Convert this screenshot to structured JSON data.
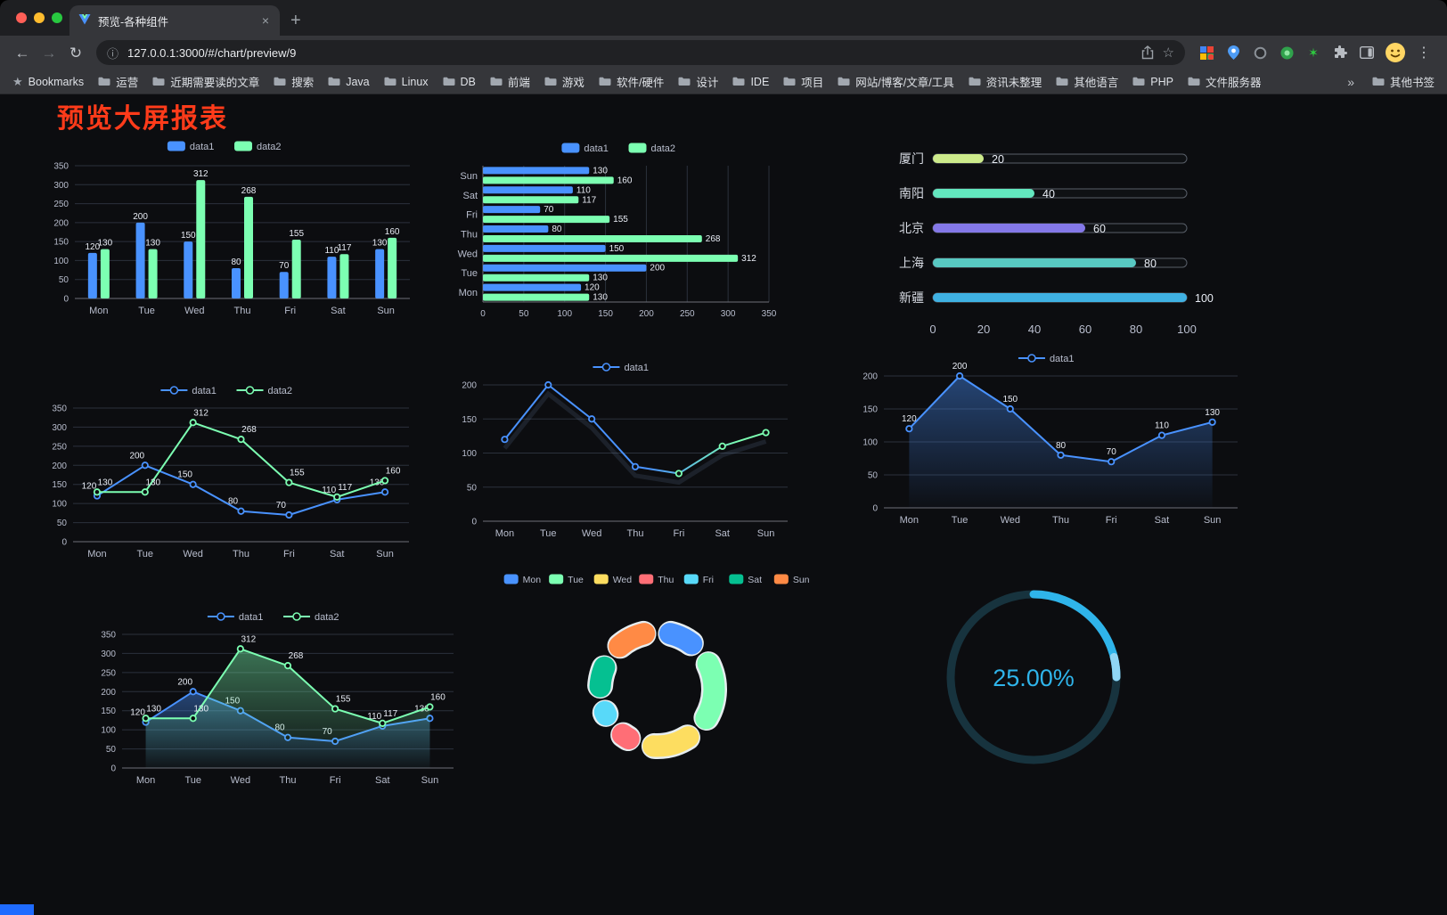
{
  "browser": {
    "tab_title": "预览-各种组件",
    "url": "127.0.0.1:3000/#/chart/preview/9",
    "icons": {
      "back": "←",
      "forward": "→",
      "reload": "↻",
      "info": "ⓘ",
      "star": "☆",
      "bookmarks_star": "★",
      "new_tab": "+",
      "close_tab": "×",
      "menu": "⋮",
      "overflow": "»",
      "ext_star": "✶"
    },
    "bookmarks_bar": {
      "bookmarks_label": "Bookmarks",
      "items": [
        "运营",
        "近期需要读的文章",
        "搜索",
        "Java",
        "Linux",
        "DB",
        "前端",
        "游戏",
        "软件/硬件",
        "设计",
        "IDE",
        "项目",
        "网站/博客/文章/工具",
        "资讯未整理",
        "其他语言",
        "PHP",
        "文件服务器"
      ],
      "other_bookmarks": "其他书签"
    }
  },
  "page": {
    "title": "预览大屏报表",
    "title_color": "#ff3b1a",
    "background": "#0c0d10"
  },
  "chart_data": [
    {
      "type": "bar",
      "name": "grouped-vertical-bar",
      "categories": [
        "Mon",
        "Tue",
        "Wed",
        "Thu",
        "Fri",
        "Sat",
        "Sun"
      ],
      "series": [
        {
          "name": "data1",
          "color": "#4992ff",
          "values": [
            120,
            200,
            150,
            80,
            70,
            110,
            130
          ]
        },
        {
          "name": "data2",
          "color": "#7cffb2",
          "values": [
            130,
            130,
            312,
            268,
            155,
            117,
            160
          ]
        }
      ],
      "ylim": [
        0,
        350
      ],
      "ytick": 50,
      "legend_position": "top",
      "grid": true,
      "value_labels": true
    },
    {
      "type": "hbar",
      "name": "grouped-horizontal-bar",
      "categories": [
        "Mon",
        "Tue",
        "Wed",
        "Thu",
        "Fri",
        "Sat",
        "Sun"
      ],
      "series": [
        {
          "name": "data1",
          "color": "#4992ff",
          "values": [
            120,
            200,
            150,
            80,
            70,
            110,
            130
          ]
        },
        {
          "name": "data2",
          "color": "#7cffb2",
          "values": [
            130,
            130,
            312,
            268,
            155,
            117,
            160
          ]
        }
      ],
      "xlim": [
        0,
        350
      ],
      "xtick": 50,
      "legend_position": "top",
      "grid": true,
      "value_labels": true
    },
    {
      "type": "progress",
      "name": "city-progress-bars",
      "max": 100,
      "axis_ticks": [
        0,
        20,
        40,
        60,
        80,
        100
      ],
      "items": [
        {
          "label": "厦门",
          "value": 20,
          "color": "#cdeb8b"
        },
        {
          "label": "南阳",
          "value": 40,
          "color": "#63e6be"
        },
        {
          "label": "北京",
          "value": 60,
          "color": "#8478e8"
        },
        {
          "label": "上海",
          "value": 80,
          "color": "#58c8c2"
        },
        {
          "label": "新疆",
          "value": 100,
          "color": "#3fb1e3"
        }
      ]
    },
    {
      "type": "line",
      "name": "two-series-line",
      "categories": [
        "Mon",
        "Tue",
        "Wed",
        "Thu",
        "Fri",
        "Sat",
        "Sun"
      ],
      "series": [
        {
          "name": "data1",
          "color": "#4992ff",
          "values": [
            120,
            200,
            150,
            80,
            70,
            110,
            130
          ]
        },
        {
          "name": "data2",
          "color": "#7cffb2",
          "values": [
            130,
            130,
            312,
            268,
            155,
            117,
            160
          ]
        }
      ],
      "ylim": [
        0,
        350
      ],
      "ytick": 50,
      "legend_position": "top",
      "value_labels": true
    },
    {
      "type": "line",
      "name": "gradient-line",
      "categories": [
        "Mon",
        "Tue",
        "Wed",
        "Thu",
        "Fri",
        "Sat",
        "Sun"
      ],
      "series": [
        {
          "name": "data1",
          "color": "#4992ff",
          "gradient_to": "#7cffb2",
          "values": [
            120,
            200,
            150,
            80,
            70,
            110,
            130
          ]
        }
      ],
      "ylim": [
        0,
        200
      ],
      "ytick": 50,
      "legend_position": "top",
      "value_labels": false
    },
    {
      "type": "line",
      "name": "area-line",
      "categories": [
        "Mon",
        "Tue",
        "Wed",
        "Thu",
        "Fri",
        "Sat",
        "Sun"
      ],
      "series": [
        {
          "name": "data1",
          "color": "#4992ff",
          "area": true,
          "values": [
            120,
            200,
            150,
            80,
            70,
            110,
            130
          ]
        }
      ],
      "ylim": [
        0,
        200
      ],
      "ytick": 50,
      "legend_position": "top",
      "value_labels": true
    },
    {
      "type": "line",
      "name": "two-series-area-line",
      "categories": [
        "Mon",
        "Tue",
        "Wed",
        "Thu",
        "Fri",
        "Sat",
        "Sun"
      ],
      "series": [
        {
          "name": "data1",
          "color": "#4992ff",
          "area": true,
          "values": [
            120,
            200,
            150,
            80,
            70,
            110,
            130
          ]
        },
        {
          "name": "data2",
          "color": "#7cffb2",
          "area": true,
          "values": [
            130,
            130,
            312,
            268,
            155,
            117,
            160
          ]
        }
      ],
      "ylim": [
        0,
        350
      ],
      "ytick": 50,
      "legend_position": "top",
      "value_labels": true
    },
    {
      "type": "donut",
      "name": "weekday-donut",
      "legend": [
        "Mon",
        "Tue",
        "Wed",
        "Thu",
        "Fri",
        "Sat",
        "Sun"
      ],
      "colors": [
        "#4992ff",
        "#7cffb2",
        "#fddd60",
        "#ff6e76",
        "#58d9f9",
        "#05c091",
        "#ff8a45"
      ],
      "values": [
        120,
        200,
        150,
        80,
        70,
        110,
        130
      ],
      "legend_position": "top"
    },
    {
      "type": "gauge",
      "name": "percent-gauge",
      "value": 25,
      "label": "25.00%",
      "color": "#2fb4ea",
      "tip_color": "#90d6f5",
      "track_color": "#17333e"
    }
  ]
}
